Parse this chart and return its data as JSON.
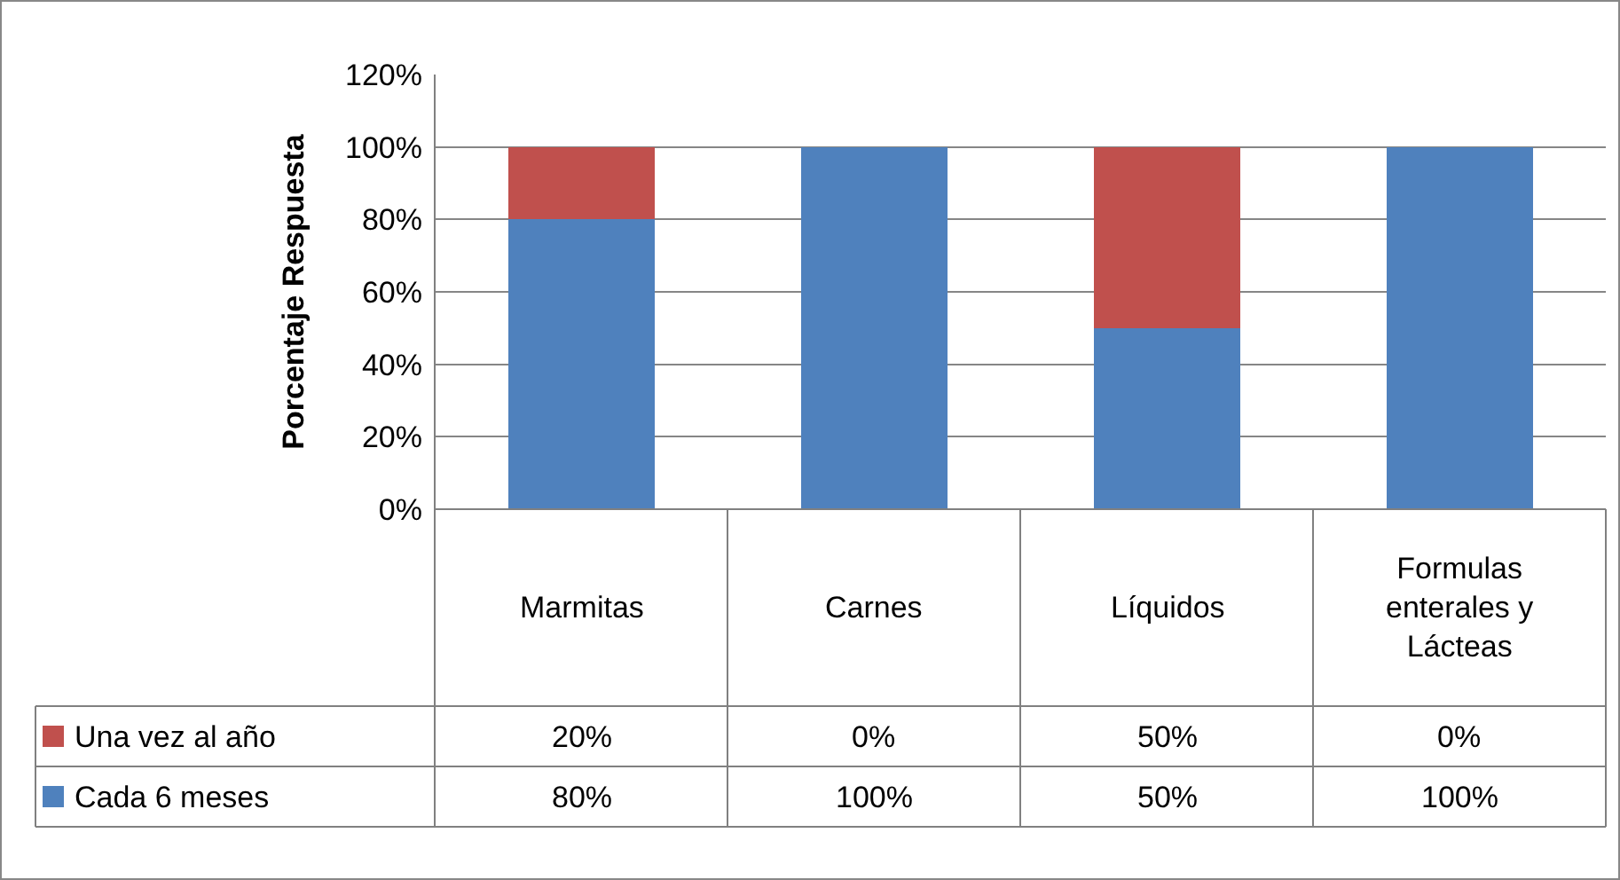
{
  "chart_data": {
    "type": "bar",
    "stacked": true,
    "ylabel": "Porcentaje Respuesta",
    "categories": [
      "Marmitas",
      "Carnes",
      "Líquidos",
      "Formulas enterales y Lácteas"
    ],
    "series": [
      {
        "name": "Cada 6 meses",
        "color": "#4f81bd",
        "values": [
          80,
          100,
          50,
          100
        ],
        "value_labels": [
          "80%",
          "100%",
          "50%",
          "100%"
        ]
      },
      {
        "name": "Una vez al año",
        "color": "#c0504d",
        "values": [
          20,
          0,
          50,
          0
        ],
        "value_labels": [
          "20%",
          "0%",
          "50%",
          "0%"
        ]
      }
    ],
    "ylim": [
      0,
      120
    ],
    "yticks": [
      {
        "value": 0,
        "label": "0%"
      },
      {
        "value": 20,
        "label": "20%"
      },
      {
        "value": 40,
        "label": "40%"
      },
      {
        "value": 60,
        "label": "60%"
      },
      {
        "value": 80,
        "label": "80%"
      },
      {
        "value": 100,
        "label": "100%"
      },
      {
        "value": 120,
        "label": "120%"
      }
    ],
    "grid": "y",
    "legend": "bottom left"
  }
}
